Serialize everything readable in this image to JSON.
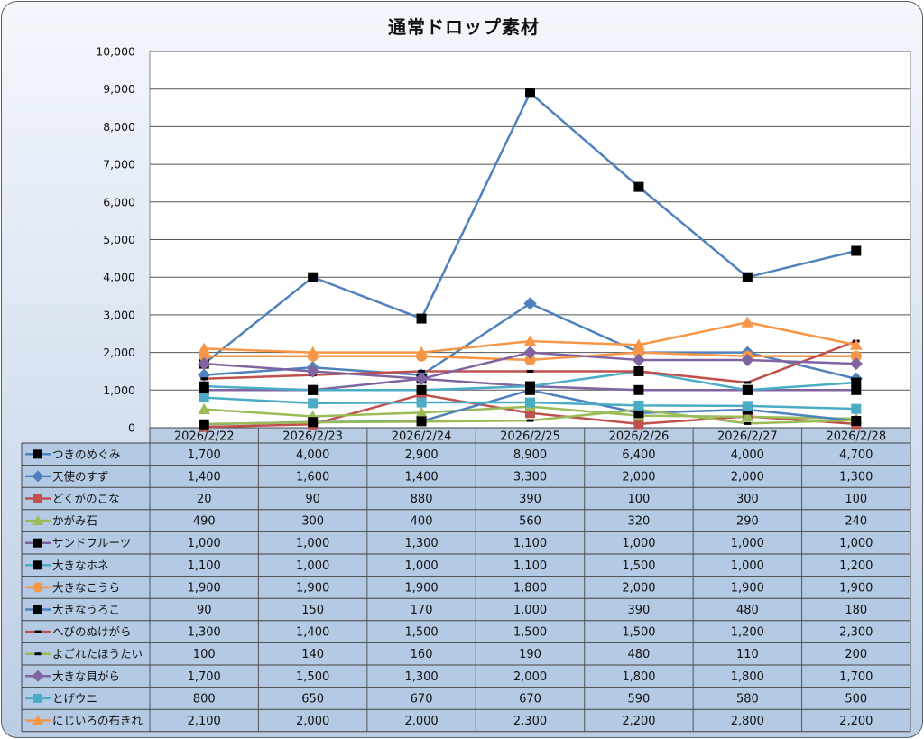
{
  "chart_data": {
    "type": "line",
    "title": "通常ドロップ素材",
    "xlabel": "",
    "ylabel": "",
    "ylim": [
      0,
      10000
    ],
    "yticks": [
      "0",
      "1,000",
      "2,000",
      "3,000",
      "4,000",
      "5,000",
      "6,000",
      "7,000",
      "8,000",
      "9,000",
      "10,000"
    ],
    "ytick_values": [
      0,
      1000,
      2000,
      3000,
      4000,
      5000,
      6000,
      7000,
      8000,
      9000,
      10000
    ],
    "grid": true,
    "legend": "data-table-bottom",
    "categories": [
      "2026/2/22",
      "2026/2/23",
      "2026/2/24",
      "2026/2/25",
      "2026/2/26",
      "2026/2/27",
      "2026/2/28"
    ],
    "series": [
      {
        "name": "つきのめぐみ",
        "color": "#4F81BD",
        "marker": "square",
        "marker_color": "#000000",
        "values": [
          1700,
          4000,
          2900,
          8900,
          6400,
          4000,
          4700
        ],
        "labels": [
          "1,700",
          "4,000",
          "2,900",
          "8,900",
          "6,400",
          "4,000",
          "4,700"
        ]
      },
      {
        "name": "天使のすず",
        "color": "#4F81BD",
        "marker": "diamond",
        "marker_color": "#4F81BD",
        "values": [
          1400,
          1600,
          1400,
          3300,
          2000,
          2000,
          1300
        ],
        "labels": [
          "1,400",
          "1,600",
          "1,400",
          "3,300",
          "2,000",
          "2,000",
          "1,300"
        ]
      },
      {
        "name": "どくがのこな",
        "color": "#C0504D",
        "marker": "square",
        "marker_color": "#C0504D",
        "values": [
          20,
          90,
          880,
          390,
          100,
          300,
          100
        ],
        "labels": [
          "20",
          "90",
          "880",
          "390",
          "100",
          "300",
          "100"
        ]
      },
      {
        "name": "かがみ石",
        "color": "#9BBB59",
        "marker": "triangle",
        "marker_color": "#9BBB59",
        "values": [
          490,
          300,
          400,
          560,
          320,
          290,
          240
        ],
        "labels": [
          "490",
          "300",
          "400",
          "560",
          "320",
          "290",
          "240"
        ]
      },
      {
        "name": "サンドフルーツ",
        "color": "#8064A2",
        "marker": "square",
        "marker_color": "#000000",
        "values": [
          1000,
          1000,
          1300,
          1100,
          1000,
          1000,
          1000
        ],
        "labels": [
          "1,000",
          "1,000",
          "1,300",
          "1,100",
          "1,000",
          "1,000",
          "1,000"
        ]
      },
      {
        "name": "大きなホネ",
        "color": "#4BACC6",
        "marker": "square",
        "marker_color": "#000000",
        "values": [
          1100,
          1000,
          1000,
          1100,
          1500,
          1000,
          1200
        ],
        "labels": [
          "1,100",
          "1,000",
          "1,000",
          "1,100",
          "1,500",
          "1,000",
          "1,200"
        ]
      },
      {
        "name": "大きなこうら",
        "color": "#F79646",
        "marker": "circle",
        "marker_color": "#F79646",
        "values": [
          1900,
          1900,
          1900,
          1800,
          2000,
          1900,
          1900
        ],
        "labels": [
          "1,900",
          "1,900",
          "1,900",
          "1,800",
          "2,000",
          "1,900",
          "1,900"
        ]
      },
      {
        "name": "大きなうろこ",
        "color": "#4F81BD",
        "marker": "square",
        "marker_color": "#000000",
        "values": [
          90,
          150,
          170,
          1000,
          390,
          480,
          180
        ],
        "labels": [
          "90",
          "150",
          "170",
          "1,000",
          "390",
          "480",
          "180"
        ]
      },
      {
        "name": "へびのぬけがら",
        "color": "#C0504D",
        "marker": "dash",
        "marker_color": "#000000",
        "values": [
          1300,
          1400,
          1500,
          1500,
          1500,
          1200,
          2300
        ],
        "labels": [
          "1,300",
          "1,400",
          "1,500",
          "1,500",
          "1,500",
          "1,200",
          "2,300"
        ]
      },
      {
        "name": "よごれたほうたい",
        "color": "#9BBB59",
        "marker": "dash",
        "marker_color": "#000000",
        "values": [
          100,
          140,
          160,
          190,
          480,
          110,
          200
        ],
        "labels": [
          "100",
          "140",
          "160",
          "190",
          "480",
          "110",
          "200"
        ]
      },
      {
        "name": "大きな貝がら",
        "color": "#8064A2",
        "marker": "diamond",
        "marker_color": "#8064A2",
        "values": [
          1700,
          1500,
          1300,
          2000,
          1800,
          1800,
          1700
        ],
        "labels": [
          "1,700",
          "1,500",
          "1,300",
          "2,000",
          "1,800",
          "1,800",
          "1,700"
        ]
      },
      {
        "name": "とげウニ",
        "color": "#4BACC6",
        "marker": "square",
        "marker_color": "#4BACC6",
        "values": [
          800,
          650,
          670,
          670,
          590,
          580,
          500
        ],
        "labels": [
          "800",
          "650",
          "670",
          "670",
          "590",
          "580",
          "500"
        ]
      },
      {
        "name": "にじいろの布きれ",
        "color": "#F79646",
        "marker": "triangle",
        "marker_color": "#F79646",
        "values": [
          2100,
          2000,
          2000,
          2300,
          2200,
          2800,
          2200
        ],
        "labels": [
          "2,100",
          "2,000",
          "2,000",
          "2,300",
          "2,200",
          "2,800",
          "2,200"
        ]
      }
    ]
  }
}
